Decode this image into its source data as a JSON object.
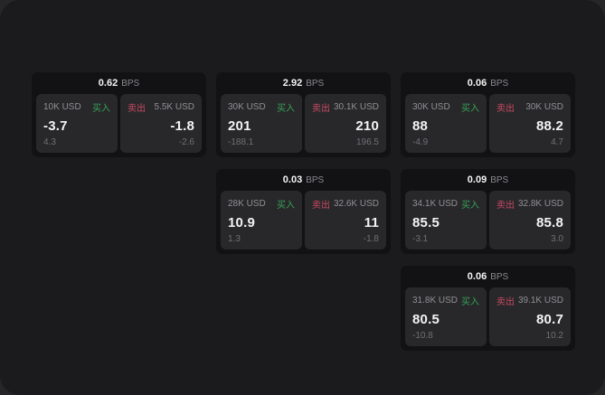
{
  "labels": {
    "buy": "买入",
    "sell": "卖出",
    "bps_unit": "BPS"
  },
  "colors": {
    "buy_green": "#36a257",
    "sell_red": "#c94a64",
    "surface": "#1b1b1d",
    "card": "#121214",
    "panel": "#28282a"
  },
  "cards": [
    {
      "bps": "0.62",
      "buy": {
        "amount": "10K USD",
        "value": "-3.7",
        "sub": "4.3"
      },
      "sell": {
        "amount": "5.5K USD",
        "value": "-1.8",
        "sub": "-2.6"
      }
    },
    {
      "bps": "2.92",
      "buy": {
        "amount": "30K USD",
        "value": "201",
        "sub": "-188.1"
      },
      "sell": {
        "amount": "30.1K USD",
        "value": "210",
        "sub": "196.5"
      }
    },
    {
      "bps": "0.06",
      "buy": {
        "amount": "30K USD",
        "value": "88",
        "sub": "-4.9"
      },
      "sell": {
        "amount": "30K USD",
        "value": "88.2",
        "sub": "4.7"
      }
    },
    {
      "bps": "0.03",
      "buy": {
        "amount": "28K USD",
        "value": "10.9",
        "sub": "1.3"
      },
      "sell": {
        "amount": "32.6K USD",
        "value": "11",
        "sub": "-1.8"
      }
    },
    {
      "bps": "0.09",
      "buy": {
        "amount": "34.1K USD",
        "value": "85.5",
        "sub": "-3.1"
      },
      "sell": {
        "amount": "32.8K USD",
        "value": "85.8",
        "sub": "3.0"
      }
    },
    {
      "bps": "0.06",
      "buy": {
        "amount": "31.8K USD",
        "value": "80.5",
        "sub": "-10.8"
      },
      "sell": {
        "amount": "39.1K USD",
        "value": "80.7",
        "sub": "10.2"
      }
    }
  ]
}
